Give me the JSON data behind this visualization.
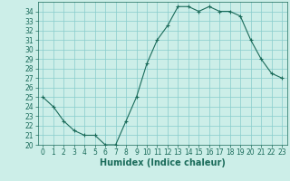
{
  "x": [
    0,
    1,
    2,
    3,
    4,
    5,
    6,
    7,
    8,
    9,
    10,
    11,
    12,
    13,
    14,
    15,
    16,
    17,
    18,
    19,
    20,
    21,
    22,
    23
  ],
  "y": [
    25.0,
    24.0,
    22.5,
    21.5,
    21.0,
    21.0,
    20.0,
    20.0,
    22.5,
    25.0,
    28.5,
    31.0,
    32.5,
    34.5,
    34.5,
    34.0,
    34.5,
    34.0,
    34.0,
    33.5,
    31.0,
    29.0,
    27.5,
    27.0
  ],
  "line_color": "#1a6b5a",
  "marker": "+",
  "bg_color": "#cceee8",
  "grid_color": "#88cccc",
  "xlabel": "Humidex (Indice chaleur)",
  "ylim": [
    20,
    35
  ],
  "xlim": [
    -0.5,
    23.5
  ],
  "yticks": [
    20,
    21,
    22,
    23,
    24,
    25,
    26,
    27,
    28,
    29,
    30,
    31,
    32,
    33,
    34
  ],
  "xticks": [
    0,
    1,
    2,
    3,
    4,
    5,
    6,
    7,
    8,
    9,
    10,
    11,
    12,
    13,
    14,
    15,
    16,
    17,
    18,
    19,
    20,
    21,
    22,
    23
  ],
  "tick_fontsize": 5.5,
  "xlabel_fontsize": 7,
  "xlabel_fontweight": "bold"
}
